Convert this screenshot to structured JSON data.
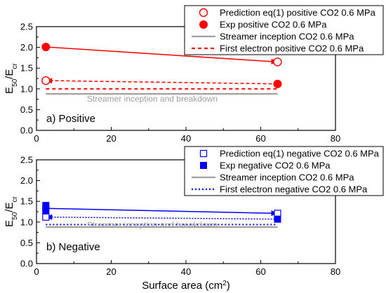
{
  "figure": {
    "xlabel": "Surface area (cm",
    "xlabel_sup": "2",
    "xlabel_close": ")"
  },
  "chart_data": [
    {
      "type": "line",
      "panel_label": "a) Positive",
      "annotation": "Streamer inception and breakdown",
      "ylabel_main": "E",
      "ylabel_sub1": "50",
      "ylabel_mid": "/E",
      "ylabel_sub2": "cr",
      "xlim": [
        0,
        80
      ],
      "ylim": [
        0,
        2.5
      ],
      "xticks": [
        0,
        20,
        40,
        60,
        80
      ],
      "yticks": [
        0.0,
        0.5,
        1.0,
        1.5,
        2.0,
        2.5
      ],
      "grid": false,
      "legend_position": "top-right",
      "series": [
        {
          "name": "Prediction eq(1) positive CO2 0.6 MPa",
          "marker": "open-circle",
          "color": "#ff0000",
          "points": [
            {
              "x": 2.5,
              "y": 1.2
            },
            {
              "x": 64.5,
              "y": 1.65
            }
          ]
        },
        {
          "name": "Exp positive CO2 0.6 MPa",
          "marker": "filled-circle",
          "color": "#ff0000",
          "points": [
            {
              "x": 2.5,
              "y": 2.01
            },
            {
              "x": 64.5,
              "y": 1.12
            }
          ]
        },
        {
          "name": "Streamer inception CO2 0.6 MPa",
          "line": "solid",
          "color": "#a0a0a0",
          "points": [
            {
              "x": 2.5,
              "y": 0.88
            },
            {
              "x": 64.5,
              "y": 0.88
            }
          ]
        },
        {
          "name": "First electron positive CO2 0.6 MPa",
          "line": "dash",
          "color": "#ff0000",
          "points": [
            {
              "x": 2.5,
              "y": 1.0
            },
            {
              "x": 64.5,
              "y": 1.0
            }
          ]
        }
      ],
      "arrows": [
        {
          "from": {
            "x": 2.5,
            "y": 2.01
          },
          "to": {
            "x": 64.5,
            "y": 1.65
          },
          "style": "solid",
          "color": "#ff0000"
        },
        {
          "from": {
            "x": 64.5,
            "y": 1.12
          },
          "to": {
            "x": 2.5,
            "y": 1.2
          },
          "style": "dash",
          "color": "#ff0000"
        }
      ]
    },
    {
      "type": "line",
      "panel_label": "b) Negative",
      "annotation": "Streamer inception and breakdown",
      "ylabel_main": "E",
      "ylabel_sub1": "50",
      "ylabel_mid": "/E",
      "ylabel_sub2": "cr",
      "xlim": [
        0,
        80
      ],
      "ylim": [
        0,
        2.5
      ],
      "xticks": [
        0,
        20,
        40,
        60,
        80
      ],
      "yticks": [
        0.0,
        0.5,
        1.0,
        1.5,
        2.0,
        2.5
      ],
      "grid": false,
      "legend_position": "top-right",
      "series": [
        {
          "name": "Prediction eq(1) negative CO2 0.6 MPa",
          "marker": "open-square",
          "color": "#0000ff",
          "points": [
            {
              "x": 2.5,
              "y": 1.12
            },
            {
              "x": 64.5,
              "y": 1.21
            }
          ]
        },
        {
          "name": "Exp negative CO2 0.6 MPa",
          "marker": "filled-square",
          "color": "#0000ff",
          "points": [
            {
              "x": 2.5,
              "y": 1.4
            },
            {
              "x": 2.5,
              "y": 1.33
            },
            {
              "x": 2.5,
              "y": 1.27
            },
            {
              "x": 64.5,
              "y": 1.07
            }
          ]
        },
        {
          "name": "Streamer inception CO2 0.6 MPa",
          "line": "solid",
          "color": "#a0a0a0",
          "points": [
            {
              "x": 2.5,
              "y": 0.88
            },
            {
              "x": 64.5,
              "y": 0.88
            }
          ]
        },
        {
          "name": "First electron negative CO2 0.6 MPa",
          "line": "dot",
          "color": "#0000ff",
          "points": [
            {
              "x": 2.5,
              "y": 0.94
            },
            {
              "x": 64.5,
              "y": 0.94
            }
          ]
        }
      ],
      "arrows": [
        {
          "from": {
            "x": 2.5,
            "y": 1.33
          },
          "to": {
            "x": 64.5,
            "y": 1.21
          },
          "style": "solid",
          "color": "#0000ff"
        },
        {
          "from": {
            "x": 64.5,
            "y": 1.07
          },
          "to": {
            "x": 2.5,
            "y": 1.12
          },
          "style": "dot",
          "color": "#0000ff"
        }
      ]
    }
  ]
}
